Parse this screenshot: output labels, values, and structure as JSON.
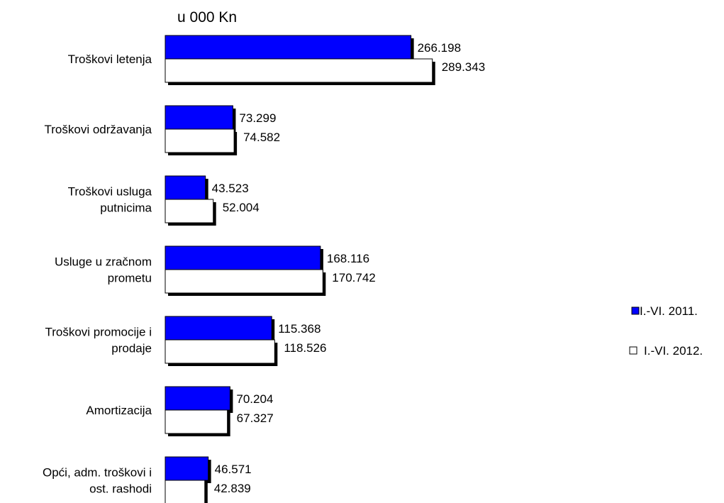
{
  "chart_data": {
    "type": "bar",
    "orientation": "horizontal",
    "unit_label": "u 000 Kn",
    "categories": [
      [
        "Troškovi letenja"
      ],
      [
        "Troškovi održavanja"
      ],
      [
        "Troškovi usluga",
        "putnicima"
      ],
      [
        "Usluge u zračnom",
        "prometu"
      ],
      [
        "Troškovi promocije i",
        "prodaje"
      ],
      [
        "Amortizacija"
      ],
      [
        "Opći, adm. troškovi i",
        "ost. rashodi"
      ]
    ],
    "series": [
      {
        "name": "I.-VI. 2011.",
        "color": "#0000ff",
        "values": [
          266198,
          73299,
          43523,
          168116,
          115368,
          70204,
          46571
        ],
        "labels": [
          "266.198",
          "73.299",
          "43.523",
          "168.116",
          "115.368",
          "70.204",
          "46.571"
        ]
      },
      {
        "name": "I.-VI. 2012.",
        "color": "#ffffff",
        "values": [
          289343,
          74582,
          52004,
          170742,
          118526,
          67327,
          42839
        ],
        "labels": [
          "289.343",
          "74.582",
          "52.004",
          "170.742",
          "118.526",
          "67.327",
          "42.839"
        ]
      }
    ],
    "xlim": [
      0,
      320000
    ],
    "grid": false,
    "legend_position": "right"
  }
}
